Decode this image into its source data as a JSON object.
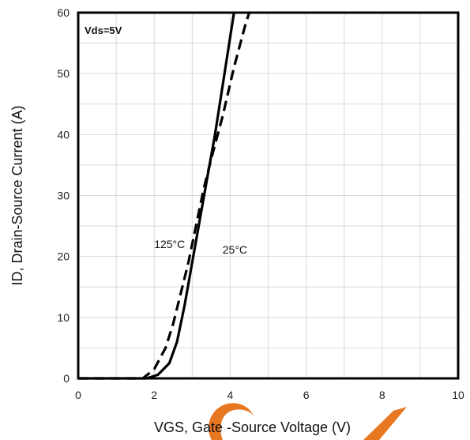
{
  "chart_data": {
    "type": "line",
    "title": "",
    "xlabel": "VGS, Gate -Source Voltage (V)",
    "ylabel": "ID, Drain-Source Current (A)",
    "xlim": [
      0,
      10
    ],
    "ylim": [
      0,
      60
    ],
    "xticks": [
      "0",
      "2",
      "4",
      "6",
      "8",
      "10"
    ],
    "yticks": [
      "0",
      "10",
      "20",
      "30",
      "40",
      "50",
      "60"
    ],
    "grid": true,
    "condition_label": "Vds=5V",
    "series": [
      {
        "name": "25°C",
        "style": "solid",
        "color": "#000000",
        "points": [
          [
            0,
            0
          ],
          [
            1.8,
            0
          ],
          [
            2.1,
            0.6
          ],
          [
            2.4,
            2.5
          ],
          [
            2.6,
            6
          ],
          [
            2.8,
            12
          ],
          [
            3.0,
            19
          ],
          [
            3.2,
            26
          ],
          [
            3.4,
            33
          ],
          [
            3.6,
            40
          ],
          [
            3.8,
            48
          ],
          [
            4.0,
            56
          ],
          [
            4.1,
            60
          ]
        ]
      },
      {
        "name": "125°C",
        "style": "dashed",
        "color": "#000000",
        "points": [
          [
            0,
            0
          ],
          [
            1.7,
            0
          ],
          [
            2.0,
            1.5
          ],
          [
            2.3,
            5
          ],
          [
            2.5,
            9
          ],
          [
            2.7,
            14
          ],
          [
            2.9,
            19
          ],
          [
            3.1,
            25
          ],
          [
            3.3,
            31
          ],
          [
            3.5,
            36
          ],
          [
            3.8,
            43
          ],
          [
            4.1,
            51
          ],
          [
            4.4,
            58
          ],
          [
            4.5,
            60
          ]
        ]
      }
    ],
    "annotations": [
      {
        "text": "125°C",
        "x": 2.0,
        "y": 21.4
      },
      {
        "text": "25°C",
        "x": 3.8,
        "y": 20.5
      }
    ]
  },
  "watermark_color": "#E87722"
}
